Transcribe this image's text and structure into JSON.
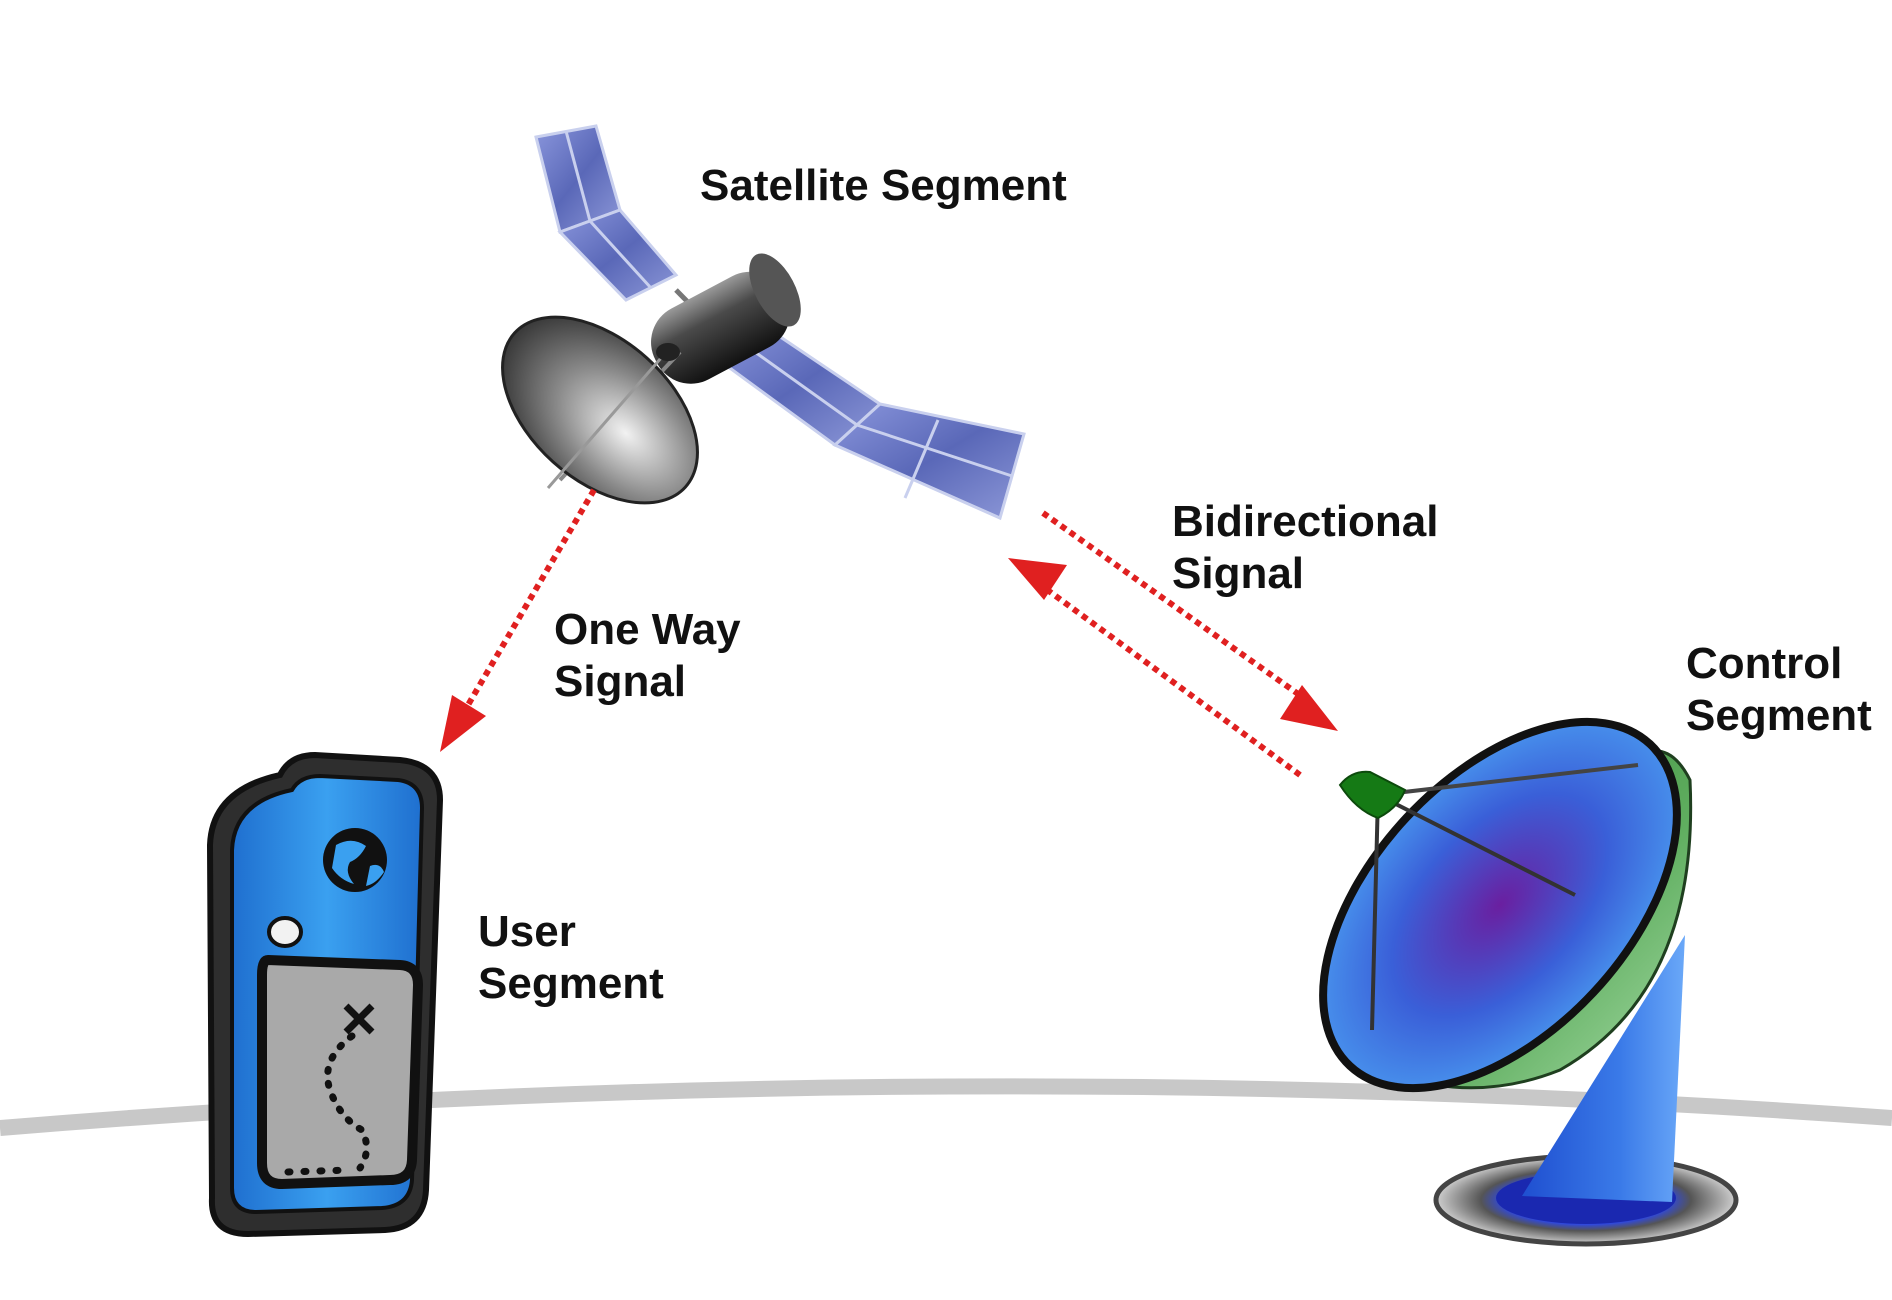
{
  "labels": {
    "satellite_segment": "Satellite Segment",
    "bidirectional_signal": [
      "Bidirectional",
      "Signal"
    ],
    "one_way_signal": [
      "One Way",
      "Signal"
    ],
    "control_segment": [
      "Control",
      "Segment"
    ],
    "user_segment": [
      "User",
      "Segment"
    ]
  },
  "colors": {
    "signal": "#e02020",
    "earth_arc": "#c8c8c8",
    "gps_body": "#3a3a3a",
    "gps_face": "#2f8fe0",
    "gps_screen": "#a8a8a8",
    "dish_blue": "#3a7be8",
    "dish_purple": "#6a1fa0",
    "dish_green": "#3c8f3c",
    "feed_green": "#1a8a1a",
    "solar_panel": "#6a78c8",
    "satellite_body": "#333333"
  },
  "icons": [
    "satellite-icon",
    "gps-handheld-icon",
    "ground-station-dish-icon",
    "globe-icon"
  ]
}
